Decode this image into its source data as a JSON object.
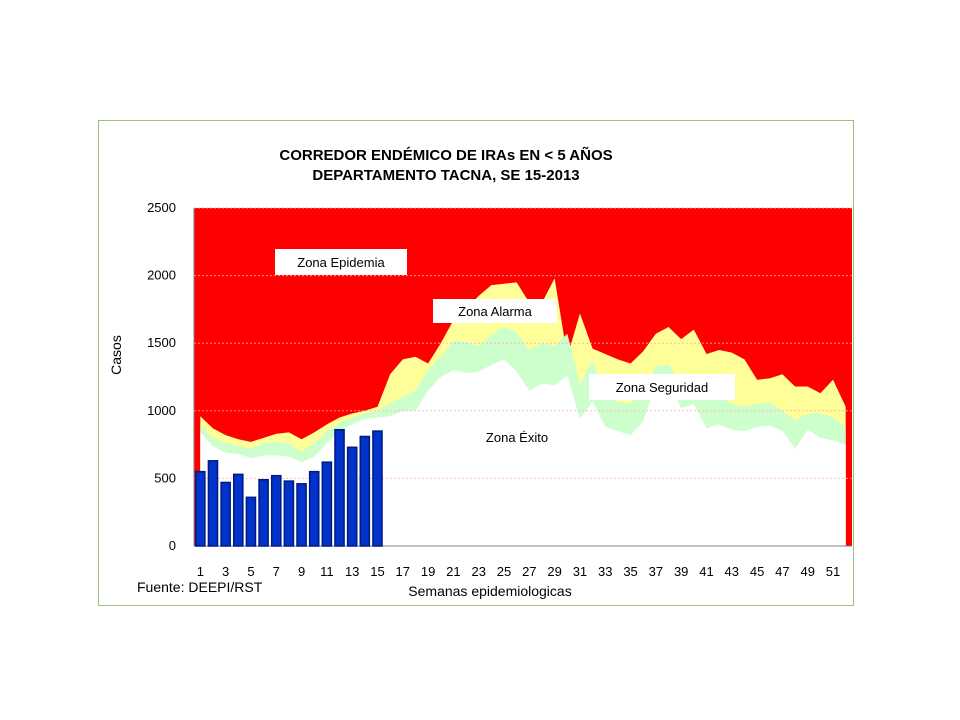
{
  "chart_data": {
    "type": "area",
    "title": "CORREDOR ENDÉMICO DE IRAs EN < 5 AÑOS",
    "subtitle": "DEPARTAMENTO TACNA,  SE  15-2013",
    "ylabel": "Casos",
    "xlabel": "Semanas epidemiologicas",
    "source": "Fuente: DEEPI/RST",
    "ylim": [
      0,
      2500
    ],
    "xlim": [
      1,
      52
    ],
    "y_ticks": [
      0,
      500,
      1000,
      1500,
      2000,
      2500
    ],
    "x_ticks": [
      1,
      3,
      5,
      7,
      9,
      11,
      13,
      15,
      17,
      19,
      21,
      23,
      25,
      27,
      29,
      31,
      33,
      35,
      37,
      39,
      41,
      43,
      45,
      47,
      49,
      51
    ],
    "grid": "horizontal dashed",
    "zones": [
      "Zona Epidemia",
      "Zona Alarma",
      "Zona Seguridad",
      "Zona Éxito"
    ],
    "colors": {
      "epidemia": "#ff0000",
      "alarma": "#ffff99",
      "seguridad": "#ccffcc",
      "exito": "#ffffff",
      "bars": "#0033cc",
      "bar_border": "#001a80"
    },
    "weeks": [
      1,
      2,
      3,
      4,
      5,
      6,
      7,
      8,
      9,
      10,
      11,
      12,
      13,
      14,
      15,
      16,
      17,
      18,
      19,
      20,
      21,
      22,
      23,
      24,
      25,
      26,
      27,
      28,
      29,
      30,
      31,
      32,
      33,
      34,
      35,
      36,
      37,
      38,
      39,
      40,
      41,
      42,
      43,
      44,
      45,
      46,
      47,
      48,
      49,
      50,
      51,
      52
    ],
    "alarma_upper": [
      960,
      870,
      820,
      790,
      770,
      800,
      830,
      840,
      790,
      840,
      900,
      950,
      980,
      1000,
      1030,
      1270,
      1380,
      1400,
      1350,
      1500,
      1670,
      1750,
      1850,
      1930,
      1940,
      1950,
      1800,
      1800,
      1980,
      1400,
      1720,
      1460,
      1420,
      1380,
      1350,
      1440,
      1570,
      1620,
      1530,
      1600,
      1420,
      1450,
      1430,
      1380,
      1230,
      1240,
      1270,
      1180,
      1180,
      1130,
      1230,
      1030
    ],
    "seguridad_upper": [
      900,
      800,
      760,
      740,
      720,
      760,
      770,
      760,
      700,
      760,
      850,
      910,
      950,
      980,
      1000,
      1060,
      1100,
      1150,
      1300,
      1400,
      1520,
      1510,
      1480,
      1560,
      1620,
      1580,
      1450,
      1500,
      1480,
      1570,
      1200,
      1370,
      1100,
      1070,
      1050,
      1150,
      1330,
      1340,
      1200,
      1240,
      1100,
      1120,
      1050,
      1030,
      1050,
      1060,
      1000,
      930,
      980,
      980,
      950,
      880
    ],
    "exito_upper": [
      840,
      740,
      690,
      680,
      650,
      670,
      670,
      660,
      620,
      660,
      760,
      850,
      900,
      940,
      950,
      960,
      1000,
      1000,
      1150,
      1250,
      1300,
      1280,
      1290,
      1340,
      1380,
      1290,
      1150,
      1200,
      1190,
      1260,
      940,
      1070,
      880,
      850,
      820,
      920,
      1200,
      1210,
      1020,
      1050,
      870,
      900,
      860,
      850,
      880,
      890,
      850,
      720,
      860,
      800,
      780,
      750
    ],
    "cases_2013": [
      550,
      630,
      470,
      530,
      360,
      490,
      520,
      480,
      460,
      550,
      620,
      860,
      730,
      810,
      850
    ]
  }
}
